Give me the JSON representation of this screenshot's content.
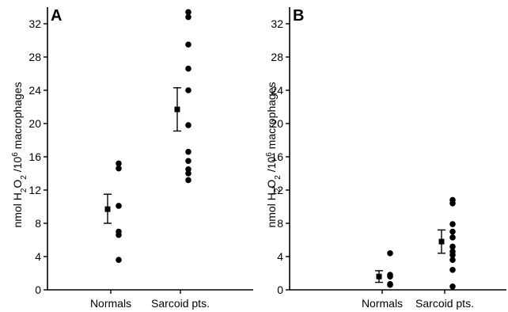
{
  "chart_data": [
    {
      "type": "scatter",
      "panel_label": "A",
      "categories": [
        "Normals",
        "Sarcoid pts."
      ],
      "ylabel": "nmol H2O2 /10^6 macrophages",
      "ylim": [
        0,
        34
      ],
      "yticks": [
        0,
        4,
        8,
        12,
        16,
        20,
        24,
        28,
        32
      ],
      "grid": false,
      "series": [
        {
          "category": "Normals",
          "points": [
            15.2,
            14.6,
            10.1,
            7.0,
            6.6,
            3.6
          ],
          "mean": 9.7,
          "error": [
            8.0,
            11.5
          ]
        },
        {
          "category": "Sarcoid pts.",
          "points": [
            33.4,
            32.8,
            29.5,
            26.6,
            24.0,
            19.8,
            16.6,
            15.5,
            14.5,
            14.0,
            13.2
          ],
          "mean": 21.7,
          "error": [
            19.1,
            24.3
          ]
        }
      ]
    },
    {
      "type": "scatter",
      "panel_label": "B",
      "categories": [
        "Normals",
        "Sarcoid pts."
      ],
      "ylabel": "nmol H2O2 /10^6 macrophages",
      "ylim": [
        0,
        34
      ],
      "yticks": [
        0,
        4,
        8,
        12,
        16,
        20,
        24,
        28,
        32
      ],
      "grid": false,
      "series": [
        {
          "category": "Normals",
          "points": [
            4.4,
            1.8,
            1.6,
            0.7,
            0.6
          ],
          "mean": 1.6,
          "error": [
            0.9,
            2.3
          ]
        },
        {
          "category": "Sarcoid pts.",
          "points": [
            10.8,
            10.4,
            7.9,
            7.0,
            6.3,
            5.2,
            4.6,
            4.2,
            3.6,
            2.4,
            0.4
          ],
          "mean": 5.8,
          "error": [
            4.4,
            7.2
          ]
        }
      ]
    }
  ]
}
